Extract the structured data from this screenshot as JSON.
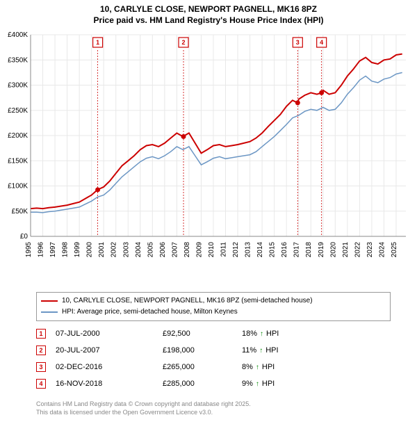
{
  "title": {
    "line1": "10, CARLYLE CLOSE, NEWPORT PAGNELL, MK16 8PZ",
    "line2": "Price paid vs. HM Land Registry's House Price Index (HPI)"
  },
  "chart": {
    "type": "line",
    "background_color": "#ffffff",
    "grid_color": "#e8e8e8",
    "axis_color": "#888888",
    "ylim": [
      0,
      400000
    ],
    "ytick_step": 50000,
    "ytick_labels": [
      "£0",
      "£50K",
      "£100K",
      "£150K",
      "£200K",
      "£250K",
      "£300K",
      "£350K",
      "£400K"
    ],
    "xlim": [
      1995,
      2025.8
    ],
    "xticks": [
      1995,
      1996,
      1997,
      1998,
      1999,
      2000,
      2001,
      2002,
      2003,
      2004,
      2005,
      2006,
      2007,
      2008,
      2009,
      2010,
      2011,
      2012,
      2013,
      2014,
      2015,
      2016,
      2017,
      2018,
      2019,
      2020,
      2021,
      2022,
      2023,
      2024,
      2025
    ],
    "label_fontsize": 10,
    "series": [
      {
        "name": "10, CARLYLE CLOSE, NEWPORT PAGNELL, MK16 8PZ (semi-detached house)",
        "color": "#cc0000",
        "line_width": 2,
        "points": [
          [
            1995,
            55000
          ],
          [
            1995.5,
            56000
          ],
          [
            1996,
            55000
          ],
          [
            1996.5,
            57000
          ],
          [
            1997,
            58000
          ],
          [
            1997.5,
            60000
          ],
          [
            1998,
            62000
          ],
          [
            1998.5,
            65000
          ],
          [
            1999,
            68000
          ],
          [
            1999.5,
            75000
          ],
          [
            2000,
            82000
          ],
          [
            2000.5,
            92500
          ],
          [
            2001,
            98000
          ],
          [
            2001.5,
            110000
          ],
          [
            2002,
            125000
          ],
          [
            2002.5,
            140000
          ],
          [
            2003,
            150000
          ],
          [
            2003.5,
            160000
          ],
          [
            2004,
            172000
          ],
          [
            2004.5,
            180000
          ],
          [
            2005,
            182000
          ],
          [
            2005.5,
            178000
          ],
          [
            2006,
            185000
          ],
          [
            2006.5,
            195000
          ],
          [
            2007,
            205000
          ],
          [
            2007.5,
            198000
          ],
          [
            2008,
            205000
          ],
          [
            2008.5,
            185000
          ],
          [
            2009,
            165000
          ],
          [
            2009.5,
            172000
          ],
          [
            2010,
            180000
          ],
          [
            2010.5,
            182000
          ],
          [
            2011,
            178000
          ],
          [
            2011.5,
            180000
          ],
          [
            2012,
            182000
          ],
          [
            2012.5,
            185000
          ],
          [
            2013,
            188000
          ],
          [
            2013.5,
            195000
          ],
          [
            2014,
            205000
          ],
          [
            2014.5,
            218000
          ],
          [
            2015,
            230000
          ],
          [
            2015.5,
            242000
          ],
          [
            2016,
            258000
          ],
          [
            2016.5,
            270000
          ],
          [
            2016.92,
            265000
          ],
          [
            2017,
            272000
          ],
          [
            2017.5,
            280000
          ],
          [
            2018,
            285000
          ],
          [
            2018.5,
            282000
          ],
          [
            2018.88,
            285000
          ],
          [
            2019,
            290000
          ],
          [
            2019.5,
            282000
          ],
          [
            2020,
            285000
          ],
          [
            2020.5,
            300000
          ],
          [
            2021,
            318000
          ],
          [
            2021.5,
            332000
          ],
          [
            2022,
            348000
          ],
          [
            2022.5,
            355000
          ],
          [
            2023,
            345000
          ],
          [
            2023.5,
            342000
          ],
          [
            2024,
            350000
          ],
          [
            2024.5,
            352000
          ],
          [
            2025,
            360000
          ],
          [
            2025.5,
            362000
          ]
        ]
      },
      {
        "name": "HPI: Average price, semi-detached house, Milton Keynes",
        "color": "#6b96c4",
        "line_width": 1.5,
        "points": [
          [
            1995,
            48000
          ],
          [
            1995.5,
            48000
          ],
          [
            1996,
            47000
          ],
          [
            1996.5,
            49000
          ],
          [
            1997,
            50000
          ],
          [
            1997.5,
            52000
          ],
          [
            1998,
            54000
          ],
          [
            1998.5,
            56000
          ],
          [
            1999,
            58000
          ],
          [
            1999.5,
            64000
          ],
          [
            2000,
            70000
          ],
          [
            2000.5,
            78000
          ],
          [
            2001,
            82000
          ],
          [
            2001.5,
            92000
          ],
          [
            2002,
            105000
          ],
          [
            2002.5,
            118000
          ],
          [
            2003,
            128000
          ],
          [
            2003.5,
            138000
          ],
          [
            2004,
            148000
          ],
          [
            2004.5,
            155000
          ],
          [
            2005,
            158000
          ],
          [
            2005.5,
            154000
          ],
          [
            2006,
            160000
          ],
          [
            2006.5,
            168000
          ],
          [
            2007,
            178000
          ],
          [
            2007.5,
            172000
          ],
          [
            2008,
            178000
          ],
          [
            2008.5,
            160000
          ],
          [
            2009,
            142000
          ],
          [
            2009.5,
            148000
          ],
          [
            2010,
            155000
          ],
          [
            2010.5,
            158000
          ],
          [
            2011,
            154000
          ],
          [
            2011.5,
            156000
          ],
          [
            2012,
            158000
          ],
          [
            2012.5,
            160000
          ],
          [
            2013,
            162000
          ],
          [
            2013.5,
            168000
          ],
          [
            2014,
            178000
          ],
          [
            2014.5,
            188000
          ],
          [
            2015,
            198000
          ],
          [
            2015.5,
            210000
          ],
          [
            2016,
            222000
          ],
          [
            2016.5,
            235000
          ],
          [
            2017,
            240000
          ],
          [
            2017.5,
            248000
          ],
          [
            2018,
            252000
          ],
          [
            2018.5,
            250000
          ],
          [
            2019,
            256000
          ],
          [
            2019.5,
            250000
          ],
          [
            2020,
            252000
          ],
          [
            2020.5,
            265000
          ],
          [
            2021,
            282000
          ],
          [
            2021.5,
            295000
          ],
          [
            2022,
            310000
          ],
          [
            2022.5,
            318000
          ],
          [
            2023,
            308000
          ],
          [
            2023.5,
            305000
          ],
          [
            2024,
            312000
          ],
          [
            2024.5,
            315000
          ],
          [
            2025,
            322000
          ],
          [
            2025.5,
            325000
          ]
        ]
      }
    ],
    "sale_markers": [
      {
        "n": "1",
        "x": 2000.51,
        "price": 92500
      },
      {
        "n": "2",
        "x": 2007.55,
        "price": 198000
      },
      {
        "n": "3",
        "x": 2016.92,
        "price": 265000
      },
      {
        "n": "4",
        "x": 2018.88,
        "price": 285000
      }
    ],
    "sale_marker_style": {
      "box_color": "#cc0000",
      "box_fill": "#ffffff",
      "box_size": 14,
      "guide_color": "#cc0000",
      "guide_dash": "2,2",
      "dot_color": "#cc0000",
      "dot_radius": 3.5
    }
  },
  "legend": {
    "items": [
      {
        "color": "#cc0000",
        "label": "10, CARLYLE CLOSE, NEWPORT PAGNELL, MK16 8PZ (semi-detached house)"
      },
      {
        "color": "#6b96c4",
        "label": "HPI: Average price, semi-detached house, Milton Keynes"
      }
    ]
  },
  "sales_table": {
    "rows": [
      {
        "n": "1",
        "date": "07-JUL-2000",
        "price": "£92,500",
        "delta": "18%",
        "delta_label": "HPI",
        "arrow_color": "#008800"
      },
      {
        "n": "2",
        "date": "20-JUL-2007",
        "price": "£198,000",
        "delta": "11%",
        "delta_label": "HPI",
        "arrow_color": "#008800"
      },
      {
        "n": "3",
        "date": "02-DEC-2016",
        "price": "£265,000",
        "delta": "8%",
        "delta_label": "HPI",
        "arrow_color": "#008800"
      },
      {
        "n": "4",
        "date": "16-NOV-2018",
        "price": "£285,000",
        "delta": "9%",
        "delta_label": "HPI",
        "arrow_color": "#008800"
      }
    ]
  },
  "footer": {
    "line1": "Contains HM Land Registry data © Crown copyright and database right 2025.",
    "line2": "This data is licensed under the Open Government Licence v3.0."
  }
}
